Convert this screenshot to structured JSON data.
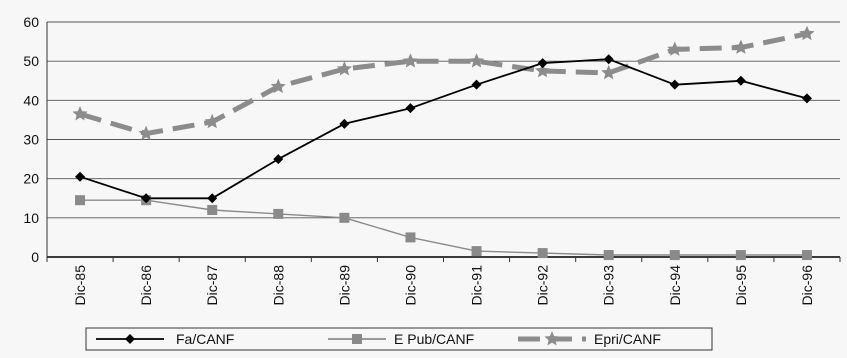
{
  "chart_data": {
    "type": "line",
    "categories": [
      "Dic-85",
      "Dic-86",
      "Dic-87",
      "Dic-88",
      "Dic-89",
      "Dic-90",
      "Dic-91",
      "Dic-92",
      "Dic-93",
      "Dic-94",
      "Dic-95",
      "Dic-96"
    ],
    "series": [
      {
        "name": "Fa/CANF",
        "values": [
          20.5,
          15,
          15,
          25,
          34,
          38,
          44,
          49.5,
          50.5,
          44,
          45,
          40.5
        ],
        "color": "#000000",
        "marker": "diamond",
        "style": "solid"
      },
      {
        "name": "E Pub/CANF",
        "values": [
          14.5,
          14.5,
          12,
          11,
          10,
          5,
          1.5,
          1,
          0.5,
          0.5,
          0.5,
          0.5
        ],
        "color": "#8a8a8a",
        "marker": "square",
        "style": "solid"
      },
      {
        "name": "Epri/CANF",
        "values": [
          36.5,
          31.5,
          34.5,
          43.5,
          48,
          50,
          50,
          47.5,
          47,
          53,
          53.5,
          57
        ],
        "color": "#8c8c8c",
        "marker": "star",
        "style": "dashed"
      }
    ],
    "title": "",
    "xlabel": "",
    "ylabel": "",
    "ylim": [
      0,
      60
    ],
    "yticks": [
      "0",
      "10",
      "20",
      "30",
      "40",
      "50",
      "60"
    ],
    "grid": true,
    "legend": "bottom"
  }
}
